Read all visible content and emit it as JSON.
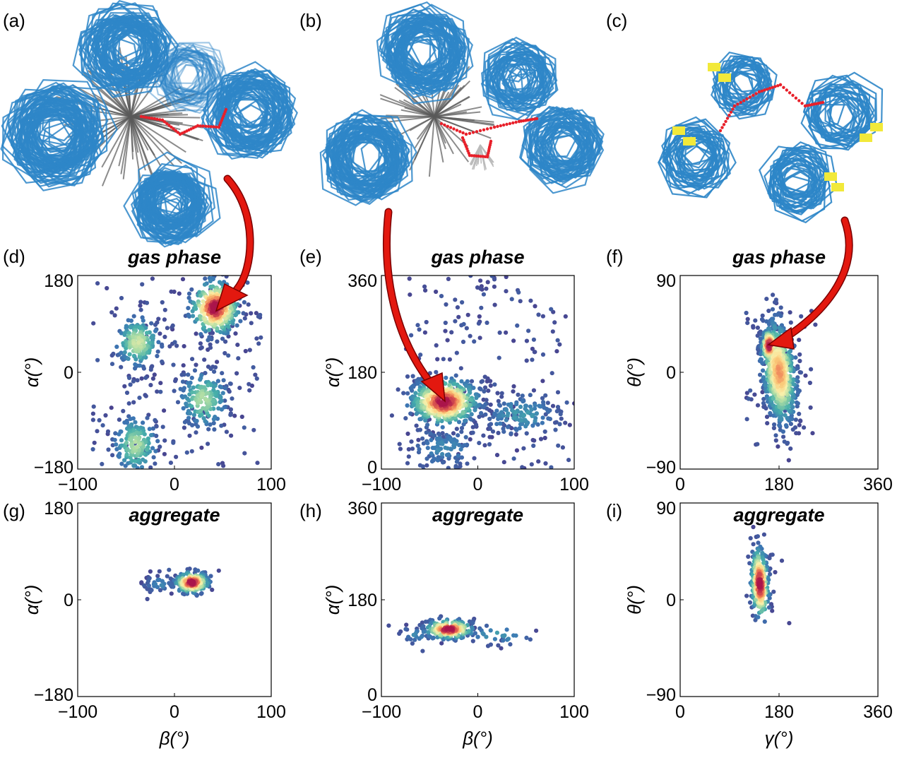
{
  "colors": {
    "bond": "#2e86c8",
    "bond_dark": "#1a5f96",
    "grey_bond": "#5a5a5a",
    "red_dot": "#e8202a",
    "yellow": "#f2e93a",
    "arrow": "#e3180f",
    "density_low": "#4a3f8c",
    "density_mid": "#f7e58a",
    "density_high": "#b0154e"
  },
  "panel_labels": [
    "(a)",
    "(b)",
    "(c)",
    "(d)",
    "(e)",
    "(f)",
    "(g)",
    "(h)",
    "(i)"
  ],
  "molecule_panels": [
    {
      "name": "a",
      "label": "(a)",
      "icon": "molecular-ensemble-icon"
    },
    {
      "name": "b",
      "label": "(b)",
      "icon": "molecular-ensemble-icon"
    },
    {
      "name": "c",
      "label": "(c)",
      "icon": "molecular-ensemble-icon"
    }
  ],
  "chart_data": [
    {
      "id": "d",
      "label": "(d)",
      "type": "scatter",
      "title": "gas phase",
      "xlabel": "",
      "ylabel": "α(°)",
      "xlim": [
        -100,
        100
      ],
      "ylim": [
        -180,
        180
      ],
      "xticks": [
        "−100",
        "0",
        "100"
      ],
      "xtickvals": [
        -100,
        0,
        100
      ],
      "yticks": [
        "180",
        "0",
        "−180"
      ],
      "ytickvals": [
        180,
        0,
        -180
      ],
      "clusters": [
        {
          "x": 42,
          "y": 120,
          "sx": 13,
          "sy": 26,
          "n": 330,
          "intensity": 1.0
        },
        {
          "x": -38,
          "y": 55,
          "sx": 12,
          "sy": 24,
          "n": 200,
          "intensity": 0.55
        },
        {
          "x": 30,
          "y": -50,
          "sx": 13,
          "sy": 28,
          "n": 190,
          "intensity": 0.5
        },
        {
          "x": -40,
          "y": -135,
          "sx": 12,
          "sy": 28,
          "n": 170,
          "intensity": 0.5
        }
      ],
      "scatter_background": {
        "x": [
          -85,
          90
        ],
        "y": [
          -180,
          180
        ],
        "n": 160
      }
    },
    {
      "id": "e",
      "label": "(e)",
      "type": "scatter",
      "title": "gas phase",
      "xlabel": "",
      "ylabel": "α(°)",
      "xlim": [
        -100,
        100
      ],
      "ylim": [
        0,
        360
      ],
      "xticks": [
        "−100",
        "0",
        "100"
      ],
      "xtickvals": [
        -100,
        0,
        100
      ],
      "yticks": [
        "360",
        "180",
        "0"
      ],
      "ytickvals": [
        360,
        180,
        0
      ],
      "clusters": [
        {
          "x": -35,
          "y": 125,
          "sx": 18,
          "sy": 22,
          "n": 520,
          "intensity": 1.0
        },
        {
          "x": 45,
          "y": 100,
          "sx": 22,
          "sy": 22,
          "n": 150,
          "intensity": 0.25
        },
        {
          "x": -35,
          "y": 40,
          "sx": 20,
          "sy": 22,
          "n": 120,
          "intensity": 0.2
        }
      ],
      "scatter_background": {
        "x": [
          -75,
          95
        ],
        "y": [
          0,
          360
        ],
        "n": 170
      }
    },
    {
      "id": "f",
      "label": "(f)",
      "type": "scatter",
      "title": "gas phase",
      "xlabel": "",
      "ylabel": "θ(°)",
      "xlim": [
        0,
        360
      ],
      "ylim": [
        -90,
        90
      ],
      "xticks": [
        "0",
        "180",
        "360"
      ],
      "xtickvals": [
        0,
        180,
        360
      ],
      "yticks": [
        "90",
        "0",
        "−90"
      ],
      "ytickvals": [
        90,
        0,
        -90
      ],
      "clusters": [
        {
          "x": 180,
          "y": 0,
          "sx": 16,
          "sy": 24,
          "n": 700,
          "intensity": 0.8,
          "tilt": -0.32
        },
        {
          "x": 162,
          "y": 25,
          "sx": 7,
          "sy": 8,
          "n": 150,
          "intensity": 1.0
        }
      ],
      "scatter_background": {
        "x": [
          120,
          250
        ],
        "y": [
          -70,
          60
        ],
        "n": 40
      }
    },
    {
      "id": "g",
      "label": "(g)",
      "type": "scatter",
      "title": "aggregate",
      "xlabel": "β(°)",
      "ylabel": "α(°)",
      "xlim": [
        -100,
        100
      ],
      "ylim": [
        -180,
        180
      ],
      "xticks": [
        "−100",
        "0",
        "100"
      ],
      "xtickvals": [
        -100,
        0,
        100
      ],
      "yticks": [
        "180",
        "0",
        "−180"
      ],
      "ytickvals": [
        180,
        0,
        -180
      ],
      "clusters": [
        {
          "x": 18,
          "y": 32,
          "sx": 9,
          "sy": 10,
          "n": 220,
          "intensity": 1.0
        },
        {
          "x": -15,
          "y": 30,
          "sx": 9,
          "sy": 8,
          "n": 40,
          "intensity": 0.2
        }
      ],
      "scatter_background": {
        "x": [
          -40,
          50
        ],
        "y": [
          0,
          60
        ],
        "n": 10
      }
    },
    {
      "id": "h",
      "label": "(h)",
      "type": "scatter",
      "title": "aggregate",
      "xlabel": "β(°)",
      "ylabel": "α(°)",
      "xlim": [
        -100,
        100
      ],
      "ylim": [
        0,
        360
      ],
      "xticks": [
        "−100",
        "0",
        "100"
      ],
      "xtickvals": [
        -100,
        0,
        100
      ],
      "yticks": [
        "360",
        "180",
        "0"
      ],
      "ytickvals": [
        360,
        180,
        0
      ],
      "clusters": [
        {
          "x": -30,
          "y": 125,
          "sx": 13,
          "sy": 9,
          "n": 200,
          "intensity": 1.0
        },
        {
          "x": 20,
          "y": 115,
          "sx": 20,
          "sy": 10,
          "n": 30,
          "intensity": 0.25
        },
        {
          "x": -65,
          "y": 115,
          "sx": 10,
          "sy": 8,
          "n": 20,
          "intensity": 0.2
        }
      ],
      "scatter_background": {
        "x": [
          -80,
          65
        ],
        "y": [
          80,
          145
        ],
        "n": 12
      }
    },
    {
      "id": "i",
      "label": "(i)",
      "type": "scatter",
      "title": "aggregate",
      "xlabel": "γ(°)",
      "ylabel": "θ(°)",
      "xlim": [
        0,
        360
      ],
      "ylim": [
        -90,
        90
      ],
      "xticks": [
        "0",
        "180",
        "360"
      ],
      "xtickvals": [
        0,
        180,
        360
      ],
      "yticks": [
        "90",
        "0",
        "−90"
      ],
      "ytickvals": [
        90,
        0,
        -90
      ],
      "clusters": [
        {
          "x": 145,
          "y": 15,
          "sx": 8,
          "sy": 17,
          "n": 300,
          "intensity": 1.0,
          "tilt": -0.18
        }
      ],
      "scatter_background": {
        "x": [
          125,
          200
        ],
        "y": [
          -35,
          45
        ],
        "n": 10
      }
    }
  ]
}
